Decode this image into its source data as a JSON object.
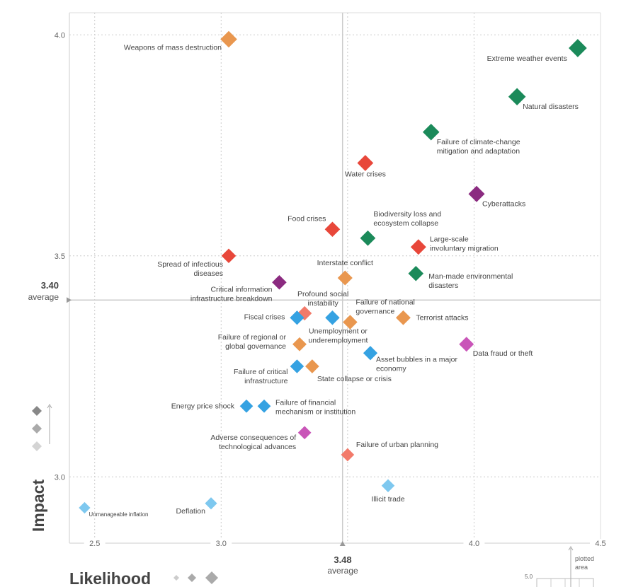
{
  "chart_data": {
    "type": "scatter",
    "xlabel": "Likelihood",
    "ylabel": "Impact",
    "xlim": [
      2.4,
      4.5
    ],
    "ylim": [
      2.85,
      4.05
    ],
    "x_ticks": [
      "2.5",
      "3.0",
      "4.0",
      "4.5"
    ],
    "y_ticks": [
      "3.0",
      "3.5",
      "4.0"
    ],
    "x_tick_values": [
      2.5,
      3.0,
      4.0,
      4.5
    ],
    "y_tick_values": [
      3.0,
      3.5,
      4.0
    ],
    "grid_x": [
      2.5,
      3.0,
      3.5,
      4.0
    ],
    "grid_y": [
      3.0,
      3.5,
      4.0
    ],
    "grid": true,
    "x_average": {
      "value": 3.48,
      "value_label": "3.48",
      "label": "average"
    },
    "y_average": {
      "value": 3.4,
      "value_label": "3.40",
      "label": "average"
    },
    "colors": {
      "environmental": "#1b8a5a",
      "economic": "#35a2e2",
      "economic_light": "#7ec8ef",
      "geopolitical": "#e9974f",
      "societal": "#e8473a",
      "societal_light": "#f27a6a",
      "technological": "#8b2b80",
      "technological_light": "#c955b8"
    },
    "points": [
      {
        "label": [
          "Weapons of mass destruction"
        ],
        "x": 3.03,
        "y": 3.99,
        "group": "geopolitical"
      },
      {
        "label": [
          "Extreme weather events"
        ],
        "x": 4.41,
        "y": 3.97,
        "group": "environmental"
      },
      {
        "label": [
          "Natural disasters"
        ],
        "x": 4.17,
        "y": 3.86,
        "group": "environmental"
      },
      {
        "label": [
          "Failure of climate-change",
          "mitigation and adaptation"
        ],
        "x": 3.83,
        "y": 3.78,
        "group": "environmental"
      },
      {
        "label": [
          "Water crises"
        ],
        "x": 3.57,
        "y": 3.71,
        "group": "societal"
      },
      {
        "label": [
          "Cyberattacks"
        ],
        "x": 4.01,
        "y": 3.64,
        "group": "technological"
      },
      {
        "label": [
          "Food crises"
        ],
        "x": 3.44,
        "y": 3.56,
        "group": "societal"
      },
      {
        "label": [
          "Biodiversity loss and",
          "ecosystem collapse"
        ],
        "x": 3.58,
        "y": 3.54,
        "group": "environmental"
      },
      {
        "label": [
          "Large-scale",
          "involuntary migration"
        ],
        "x": 3.78,
        "y": 3.52,
        "group": "societal"
      },
      {
        "label": [
          "Spread of infectious",
          "diseases"
        ],
        "x": 3.03,
        "y": 3.5,
        "group": "societal"
      },
      {
        "label": [
          "Man-made environmental",
          "disasters"
        ],
        "x": 3.77,
        "y": 3.46,
        "group": "environmental"
      },
      {
        "label": [
          "Interstate conflict"
        ],
        "x": 3.49,
        "y": 3.45,
        "group": "geopolitical"
      },
      {
        "label": [
          "Critical information",
          "infrastructure breakdown"
        ],
        "x": 3.23,
        "y": 3.44,
        "group": "technological"
      },
      {
        "label": [
          "Profound social",
          "instability"
        ],
        "x": 3.33,
        "y": 3.37,
        "group": "societal_light"
      },
      {
        "label": [
          "Fiscal crises"
        ],
        "x": 3.3,
        "y": 3.36,
        "group": "economic"
      },
      {
        "label": [
          "Failure of national",
          "governance"
        ],
        "x": 3.51,
        "y": 3.35,
        "group": "geopolitical"
      },
      {
        "label": [
          "Terrorist attacks"
        ],
        "x": 3.72,
        "y": 3.36,
        "group": "geopolitical"
      },
      {
        "label": [
          "Data fraud or theft"
        ],
        "x": 3.97,
        "y": 3.3,
        "group": "technological_light"
      },
      {
        "label": [
          "Failure of regional or",
          "global governance"
        ],
        "x": 3.31,
        "y": 3.3,
        "group": "geopolitical"
      },
      {
        "label": [
          "Unemployment or",
          "underemployment"
        ],
        "x": 3.44,
        "y": 3.36,
        "group": "economic"
      },
      {
        "label": [
          "Asset bubbles in a major",
          "economy"
        ],
        "x": 3.59,
        "y": 3.28,
        "group": "economic"
      },
      {
        "label": [
          "Failure of critical",
          "infrastructure"
        ],
        "x": 3.3,
        "y": 3.25,
        "group": "economic"
      },
      {
        "label": [
          "State collapse or crisis"
        ],
        "x": 3.36,
        "y": 3.25,
        "group": "geopolitical"
      },
      {
        "label": [
          "Energy price shock"
        ],
        "x": 3.1,
        "y": 3.16,
        "group": "economic"
      },
      {
        "label": [
          "Failure of financial",
          "mechanism or institution"
        ],
        "x": 3.17,
        "y": 3.16,
        "group": "economic"
      },
      {
        "label": [
          "Adverse consequences of",
          "technological advances"
        ],
        "x": 3.33,
        "y": 3.1,
        "group": "technological_light"
      },
      {
        "label": [
          "Failure of urban planning"
        ],
        "x": 3.5,
        "y": 3.05,
        "group": "societal_light"
      },
      {
        "label": [
          "Illicit trade"
        ],
        "x": 3.66,
        "y": 2.98,
        "group": "economic_light"
      },
      {
        "label": [
          "Deflation"
        ],
        "x": 2.96,
        "y": 2.94,
        "group": "economic_light"
      },
      {
        "label": [
          "Unmanageable inflation"
        ],
        "x": 2.46,
        "y": 2.93,
        "group": "economic_light"
      }
    ],
    "inset": {
      "label": [
        "plotted",
        "area"
      ],
      "tick": "5.0"
    }
  }
}
